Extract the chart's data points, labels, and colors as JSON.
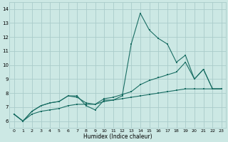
{
  "bg_color": "#cce8e4",
  "grid_color": "#aaccca",
  "line_color": "#1a6e64",
  "xlabel": "Humidex (Indice chaleur)",
  "xlim": [
    -0.5,
    23.5
  ],
  "ylim": [
    5.5,
    14.5
  ],
  "xticks": [
    0,
    1,
    2,
    3,
    4,
    5,
    6,
    7,
    8,
    9,
    10,
    11,
    12,
    13,
    14,
    15,
    16,
    17,
    18,
    19,
    20,
    21,
    22,
    23
  ],
  "yticks": [
    6,
    7,
    8,
    9,
    10,
    11,
    12,
    13,
    14
  ],
  "x": [
    0,
    1,
    2,
    3,
    4,
    5,
    6,
    7,
    8,
    9,
    10,
    11,
    12,
    13,
    14,
    15,
    16,
    17,
    18,
    19,
    20,
    21,
    22,
    23
  ],
  "y_jagged": [
    6.5,
    6.0,
    6.7,
    7.1,
    7.3,
    7.4,
    7.8,
    7.8,
    7.1,
    6.8,
    7.5,
    7.5,
    7.8,
    11.5,
    13.7,
    12.5,
    11.9,
    11.5,
    10.2,
    10.7,
    9.0,
    9.7,
    8.3,
    8.3
  ],
  "y_mid": [
    6.5,
    6.0,
    6.7,
    7.1,
    7.3,
    7.4,
    7.8,
    7.7,
    7.3,
    7.2,
    7.6,
    7.7,
    7.9,
    8.1,
    8.6,
    8.9,
    9.1,
    9.3,
    9.5,
    10.2,
    9.0,
    9.7,
    8.3,
    8.3
  ],
  "y_trend": [
    6.5,
    6.0,
    6.5,
    6.7,
    6.8,
    6.9,
    7.1,
    7.2,
    7.2,
    7.2,
    7.4,
    7.5,
    7.6,
    7.7,
    7.8,
    7.9,
    8.0,
    8.1,
    8.2,
    8.3,
    8.3,
    8.3,
    8.3,
    8.3
  ]
}
